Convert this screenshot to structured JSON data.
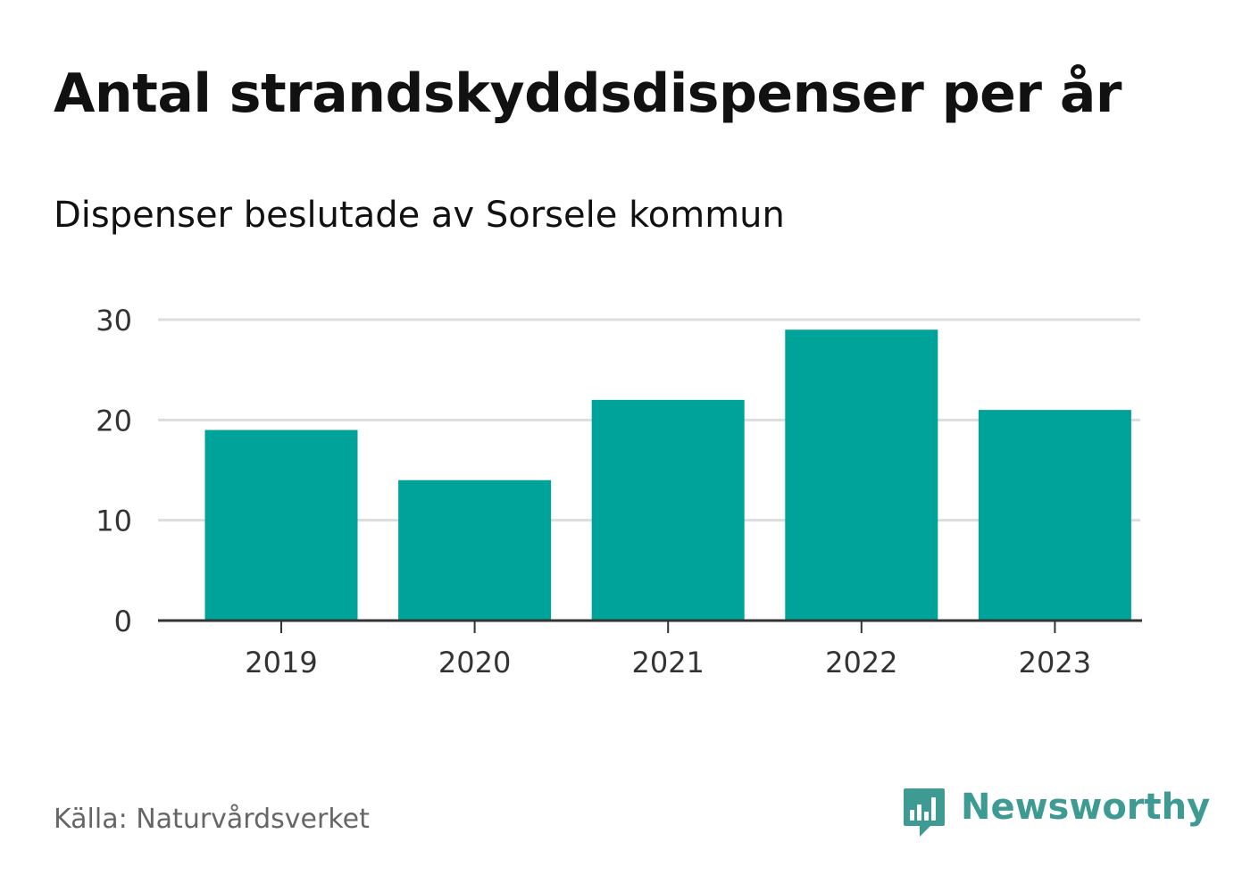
{
  "header": {
    "title": "Antal strandskyddsdispenser per år",
    "subtitle": "Dispenser beslutade av Sorsele kommun"
  },
  "footer": {
    "source": "Källa: Naturvårdsverket",
    "brand": "Newsworthy",
    "brand_logo_icon": "chart-speech-bubble-icon"
  },
  "colors": {
    "bar": "#00a39a",
    "brand": "#3d9b93",
    "gridline": "#dddddd",
    "axis": "#333333"
  },
  "chart_data": {
    "type": "bar",
    "title": "Antal strandskyddsdispenser per år",
    "subtitle": "Dispenser beslutade av Sorsele kommun",
    "categories": [
      "2019",
      "2020",
      "2021",
      "2022",
      "2023"
    ],
    "values": [
      19,
      14,
      22,
      29,
      21
    ],
    "xlabel": "",
    "ylabel": "",
    "ylim": [
      0,
      30
    ],
    "yticks": [
      0,
      10,
      20,
      30
    ],
    "grid": true,
    "legend": "none"
  }
}
